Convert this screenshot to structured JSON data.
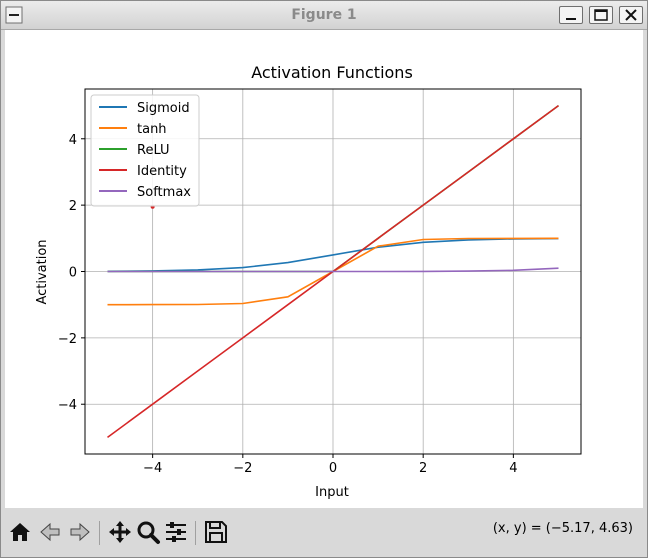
{
  "window": {
    "title": "Figure 1",
    "controls": [
      "minimize",
      "maximize",
      "close"
    ]
  },
  "toolbar": {
    "tools": [
      "home-icon",
      "back-icon",
      "forward-icon",
      "pan-icon",
      "zoom-icon",
      "configure-subplots-icon",
      "save-icon"
    ],
    "coords_text": "(x, y) = (−5.17, 4.63)"
  },
  "chart_data": {
    "type": "line",
    "title": "Activation Functions",
    "xlabel": "Input",
    "ylabel": "Activation",
    "xlim": [
      -5.5,
      5.5
    ],
    "ylim": [
      -5.5,
      5.5
    ],
    "x_ticks": [
      -4,
      -2,
      0,
      2,
      4
    ],
    "y_ticks": [
      -4,
      -2,
      0,
      2,
      4
    ],
    "x_tick_labels": [
      "−4",
      "−2",
      "0",
      "2",
      "4"
    ],
    "y_tick_labels": [
      "−4",
      "−2",
      "0",
      "2",
      "4"
    ],
    "grid": true,
    "legend_position": "top-left",
    "x": [
      -5,
      -4,
      -3,
      -2,
      -1,
      0,
      1,
      2,
      3,
      4,
      5
    ],
    "series": [
      {
        "name": "Sigmoid",
        "color": "#1f77b4",
        "values": [
          0.007,
          0.018,
          0.047,
          0.119,
          0.269,
          0.5,
          0.731,
          0.881,
          0.953,
          0.982,
          0.993
        ]
      },
      {
        "name": "tanh",
        "color": "#ff7f0e",
        "values": [
          -1.0,
          -0.999,
          -0.995,
          -0.964,
          -0.762,
          0.0,
          0.762,
          0.964,
          0.995,
          0.999,
          1.0
        ]
      },
      {
        "name": "ReLU",
        "color": "#2ca02c",
        "values": [
          0,
          0,
          0,
          0,
          0,
          0,
          1,
          2,
          3,
          4,
          5
        ]
      },
      {
        "name": "Identity",
        "color": "#d62728",
        "values": [
          -5,
          -4,
          -3,
          -2,
          -1,
          0,
          1,
          2,
          3,
          4,
          5
        ]
      },
      {
        "name": "Softmax",
        "color": "#9467bd",
        "values": [
          0.0,
          0.0,
          0.0,
          0.0,
          0.0,
          0.0,
          0.001,
          0.004,
          0.011,
          0.036,
          0.1
        ]
      }
    ],
    "marker_point": {
      "x": -4,
      "y": 1.95,
      "color": "#d62728"
    }
  }
}
